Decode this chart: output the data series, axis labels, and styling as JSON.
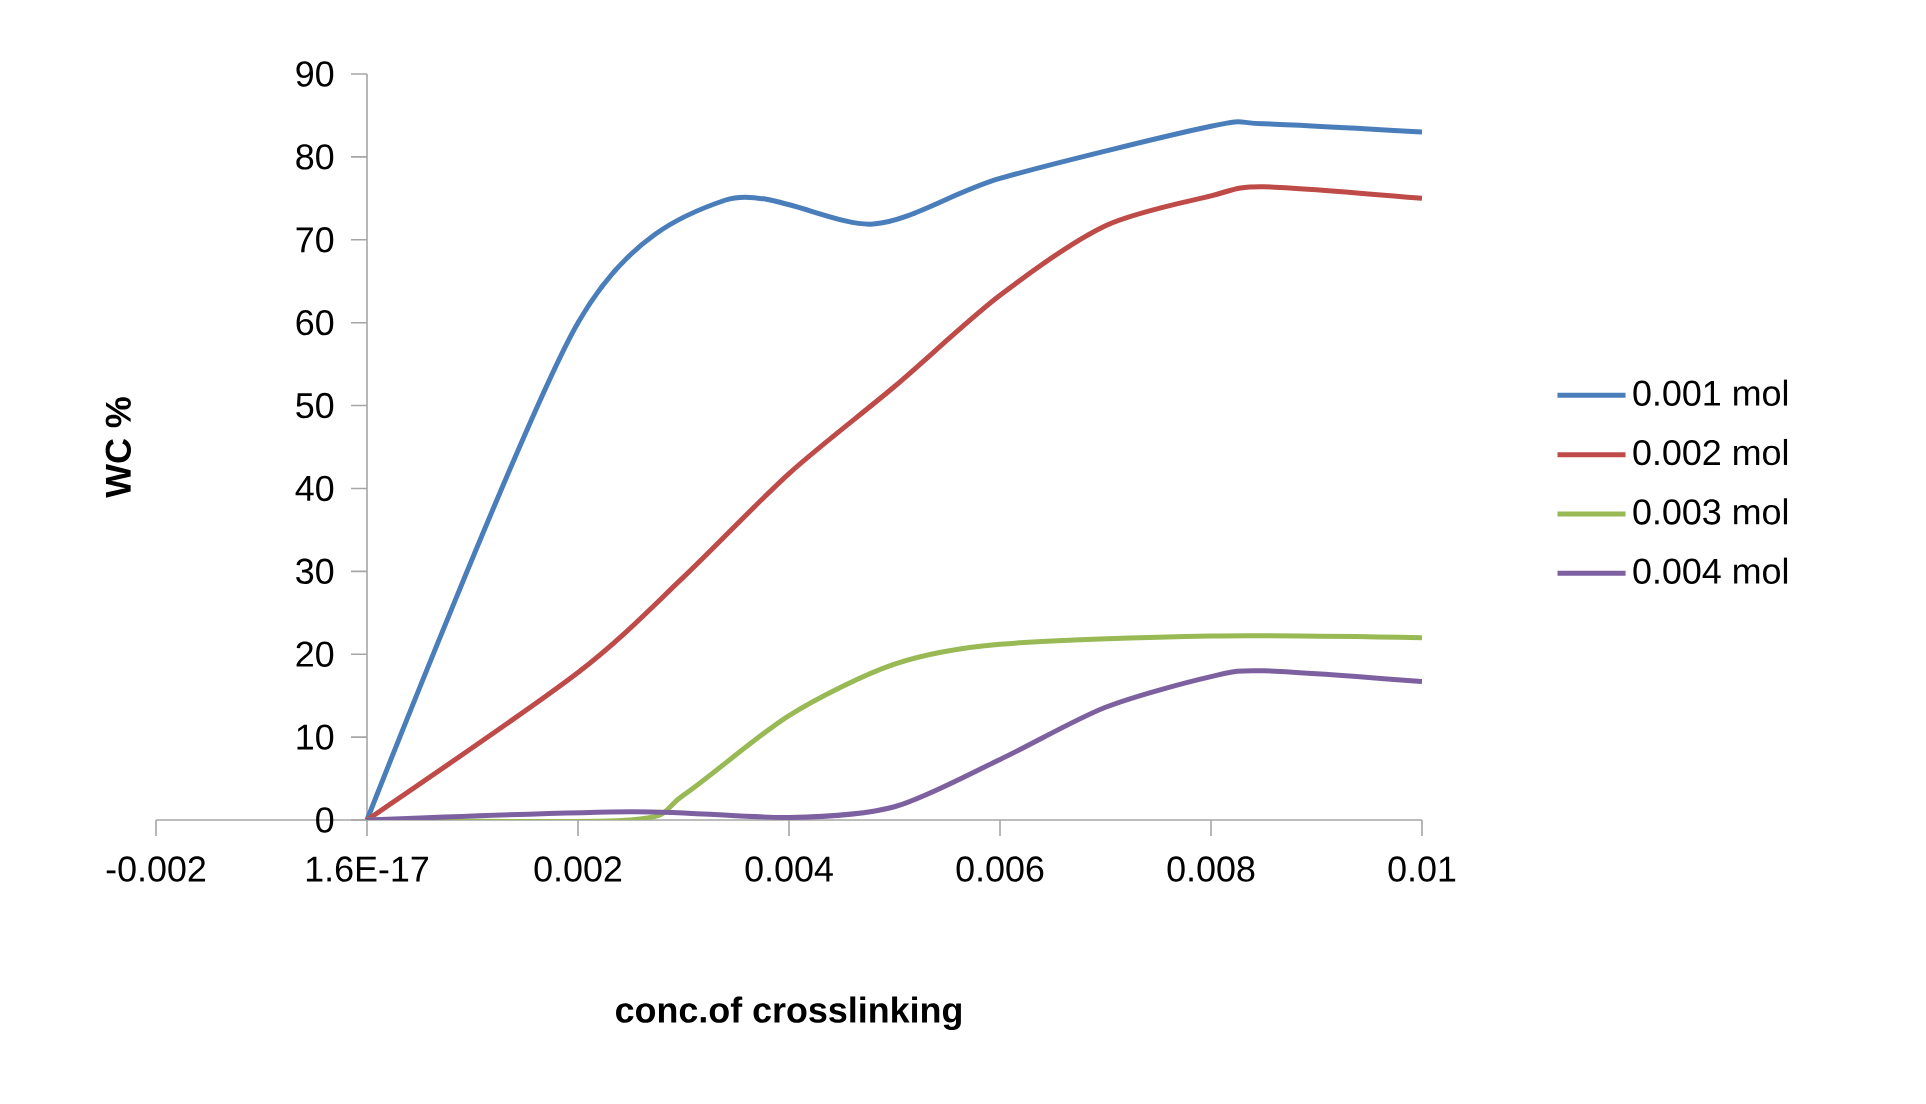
{
  "chart_data": {
    "type": "line",
    "xlabel": "conc.of crosslinking",
    "ylabel": "WC    %",
    "xlim": [
      -0.002,
      0.01
    ],
    "ylim": [
      0,
      90
    ],
    "xticks": [
      -0.002,
      {
        "value": 0,
        "label": "1.6E-17"
      },
      0.002,
      0.004,
      0.006,
      0.008,
      0.01
    ],
    "yticks": [
      0,
      10,
      20,
      30,
      40,
      50,
      60,
      70,
      80,
      90
    ],
    "grid": false,
    "legend": "right",
    "marker": "none",
    "line_style": "solid",
    "series": [
      {
        "name": "0.001 mol",
        "color": "#4a7ebb",
        "x": [
          0,
          0.002,
          0.0034,
          0.0048,
          0.006,
          0.008,
          0.0085,
          0.01
        ],
        "values": [
          0,
          60,
          74.8,
          71.9,
          77.4,
          83.7,
          84,
          83
        ]
      },
      {
        "name": "0.002 mol",
        "color": "#be4b48",
        "x": [
          0,
          0.002,
          0.003,
          0.004,
          0.005,
          0.006,
          0.007,
          0.008,
          0.0085,
          0.01
        ],
        "values": [
          0,
          17.8,
          29.3,
          41.8,
          52.3,
          63.3,
          71.7,
          75.3,
          76.4,
          75
        ]
      },
      {
        "name": "0.003 mol",
        "color": "#98b954",
        "x": [
          0,
          0.0025,
          0.003,
          0.004,
          0.005,
          0.006,
          0.008,
          0.01
        ],
        "values": [
          0,
          0,
          3,
          12.6,
          18.8,
          21.2,
          22.2,
          22
        ]
      },
      {
        "name": "0.004 mol",
        "color": "#7d60a0",
        "x": [
          0,
          0.0025,
          0.004,
          0.005,
          0.006,
          0.007,
          0.008,
          0.0085,
          0.01
        ],
        "values": [
          0,
          1,
          0.3,
          1.6,
          7.3,
          13.6,
          17.3,
          18,
          16.7
        ]
      }
    ]
  }
}
